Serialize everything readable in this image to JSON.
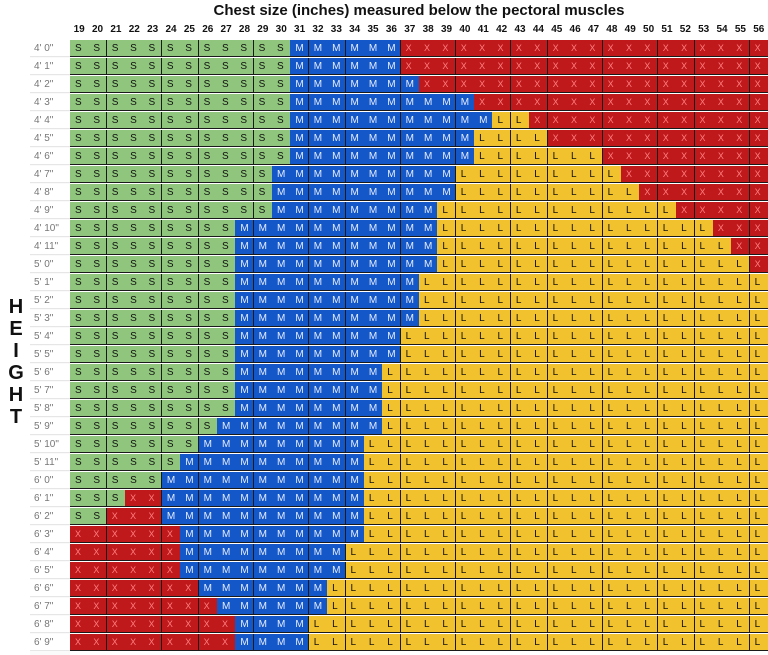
{
  "title": "Chest size (inches) measured below the pectoral muscles",
  "side_label": [
    "H",
    "E",
    "I",
    "G",
    "H",
    "T"
  ],
  "columns": [
    "19",
    "20",
    "21",
    "22",
    "23",
    "24",
    "25",
    "26",
    "27",
    "28",
    "29",
    "30",
    "31",
    "32",
    "33",
    "34",
    "35",
    "36",
    "37",
    "38",
    "39",
    "40",
    "41",
    "42",
    "43",
    "44",
    "45",
    "46",
    "47",
    "48",
    "49",
    "50",
    "51",
    "52",
    "53",
    "54",
    "55",
    "56"
  ],
  "rows": [
    {
      "label": "4' 0\"",
      "cells": "SSSSSSSSSSSSMMMMMMXXXXXXXXXXXXXXXXXXXX"
    },
    {
      "label": "4' 1\"",
      "cells": "SSSSSSSSSSSSMMMMMMXXXXXXXXXXXXXXXXXXXX"
    },
    {
      "label": "4' 2\"",
      "cells": "SSSSSSSSSSSSMMMMMMMXXXXXXXXXXXXXXXXXXX"
    },
    {
      "label": "4' 3\"",
      "cells": "SSSSSSSSSSSSMMMMMMMMMMXXXXXXXXXXXXXXXX"
    },
    {
      "label": "4' 4\"",
      "cells": "SSSSSSSSSSSSMMMMMMMMMMMLLXXXXXXXXXXXXX"
    },
    {
      "label": "4' 5\"",
      "cells": "SSSSSSSSSSSSMMMMMMMMMMLLLLXXXXXXXXXXXX"
    },
    {
      "label": "4' 6\"",
      "cells": "SSSSSSSSSSSSMMMMMMMMMMLLLLLLLXXXXXXXXX"
    },
    {
      "label": "4' 7\"",
      "cells": "SSSSSSSSSSSMMMMMMMMMMLLLLLLLLLXXXXXXXX"
    },
    {
      "label": "4' 8\"",
      "cells": "SSSSSSSSSSSMMMMMMMMMMLLLLLLLLLLXXXXXXX"
    },
    {
      "label": "4' 9\"",
      "cells": "SSSSSSSSSSSMMMMMMMMMLLLLLLLLLLLLLXXXXX"
    },
    {
      "label": "4' 10\"",
      "cells": "SSSSSSSSSMMMMMMMMMMMLLLLLLLLLLLLLLLXXX"
    },
    {
      "label": "4' 11\"",
      "cells": "SSSSSSSSSMMMMMMMMMMMLLLLLLLLLLLLLLLLXX"
    },
    {
      "label": "5' 0\"",
      "cells": "SSSSSSSSSMMMMMMMMMMMLLLLLLLLLLLLLLLLLX"
    },
    {
      "label": "5' 1\"",
      "cells": "SSSSSSSSSMMMMMMMMMMLLLLLLLLLLLLLLLLLLL"
    },
    {
      "label": "5' 2\"",
      "cells": "SSSSSSSSSMMMMMMMMMMLLLLLLLLLLLLLLLLLLL"
    },
    {
      "label": "5' 3\"",
      "cells": "SSSSSSSSSMMMMMMMMMMLLLLLLLLLLLLLLLLLLL"
    },
    {
      "label": "5' 4\"",
      "cells": "SSSSSSSSSMMMMMMMMMLLLLLLLLLLLLLLLLLLLL"
    },
    {
      "label": "5' 5\"",
      "cells": "SSSSSSSSSMMMMMMMMMLLLLLLLLLLLLLLLLLLLL"
    },
    {
      "label": "5' 6\"",
      "cells": "SSSSSSSSSMMMMMMMMLLLLLLLLLLLLLLLLLLLLL"
    },
    {
      "label": "5' 7\"",
      "cells": "SSSSSSSSSMMMMMMMMLLLLLLLLLLLLLLLLLLLLL"
    },
    {
      "label": "5' 8\"",
      "cells": "SSSSSSSSSMMMMMMMMLLLLLLLLLLLLLLLLLLLLL"
    },
    {
      "label": "5' 9\"",
      "cells": "SSSSSSSSMMMMMMMMMLLLLLLLLLLLLLLLLLLLLL"
    },
    {
      "label": "5' 10\"",
      "cells": "SSSSSSSMMMMMMMMMLLLLLLLLLLLLLLLLLLLLLL"
    },
    {
      "label": "5' 11\"",
      "cells": "SSSSSSMMMMMMMMMMLLLLLLLLLLLLLLLLLLLLLL"
    },
    {
      "label": "6' 0\"",
      "cells": "SSSSSMMMMMMMMMMMLLLLLLLLLLLLLLLLLLLLLL"
    },
    {
      "label": "6' 1\"",
      "cells": "SSSXXMMMMMMMMMMMLLLLLLLLLLLLLLLLLLLLLL"
    },
    {
      "label": "6' 2\"",
      "cells": "SSXXXMMMMMMMMMMMLLLLLLLLLLLLLLLLLLLLLL"
    },
    {
      "label": "6' 3\"",
      "cells": "XXXXXXMMMMMMMMMMLLLLLLLLLLLLLLLLLLLLLL"
    },
    {
      "label": "6' 4\"",
      "cells": "XXXXXXMMMMMMMMMLLLLLLLLLLLLLLLLLLLLLLL"
    },
    {
      "label": "6' 5\"",
      "cells": "XXXXXXMMMMMMMMMLLLLLLLLLLLLLLLLLLLLLLL"
    },
    {
      "label": "6' 6\"",
      "cells": "XXXXXXXMMMMMMMLLLLLLLLLLLLLLLLLLLLLLLL"
    },
    {
      "label": "6' 7\"",
      "cells": "XXXXXXXXMMMMMMLLLLLLLLLLLLLLLLLLLLLLLL"
    },
    {
      "label": "6' 8\"",
      "cells": "XXXXXXXXXMMMMLLLLLLLLLLLLLLLLLLLLLLLLL"
    },
    {
      "label": "6' 9\"",
      "cells": "XXXXXXXXXMMMMLLLLLLLLLLLLLLLLLLLLLLLLL"
    }
  ],
  "symbols": {
    "S": "S",
    "M": "M",
    "L": "L",
    "X": "X"
  },
  "colors": {
    "S": "#8fc57c",
    "M": "#1457c9",
    "L": "#f2c12e",
    "X": "#c0191c"
  }
}
